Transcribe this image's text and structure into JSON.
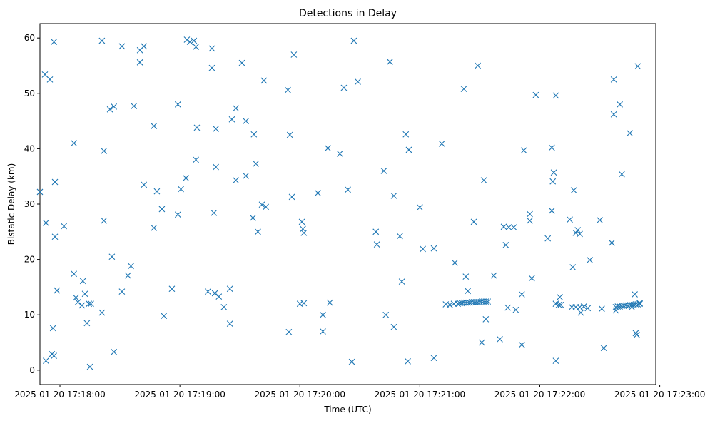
{
  "chart_data": {
    "type": "scatter",
    "title": "Detections in Delay",
    "xlabel": "Time (UTC)",
    "ylabel": "Bistatic Delay (km)",
    "x_unit": "time",
    "xlim": [
      "2025-01-20 17:17:50",
      "2025-01-20 17:22:58"
    ],
    "ylim": [
      -2.6,
      62.6
    ],
    "x_ticks": [
      "2025-01-20 17:18:00",
      "2025-01-20 17:19:00",
      "2025-01-20 17:20:00",
      "2025-01-20 17:21:00",
      "2025-01-20 17:22:00",
      "2025-01-20 17:23:00"
    ],
    "y_ticks": [
      0,
      10,
      20,
      30,
      40,
      50,
      60
    ],
    "grid": false,
    "legend": "none",
    "marker": "x",
    "color": "#1f77b4",
    "series": [
      {
        "points": [
          [
            "17:17:50.0",
            32.2
          ],
          [
            "17:17:52.5",
            53.4
          ],
          [
            "17:17:53.0",
            26.6
          ],
          [
            "17:17:53.0",
            1.7
          ],
          [
            "17:17:55.0",
            52.5
          ],
          [
            "17:17:56.0",
            2.9
          ],
          [
            "17:17:56.5",
            7.6
          ],
          [
            "17:17:57.0",
            2.6
          ],
          [
            "17:17:57.0",
            59.3
          ],
          [
            "17:17:57.5",
            24.1
          ],
          [
            "17:17:57.5",
            34.0
          ],
          [
            "17:17:58.5",
            14.4
          ],
          [
            "17:18:02.0",
            26.0
          ],
          [
            "17:18:07.0",
            41.0
          ],
          [
            "17:18:07.0",
            17.4
          ],
          [
            "17:18:08.0",
            13.1
          ],
          [
            "17:18:09.0",
            12.3
          ],
          [
            "17:18:11.0",
            11.7
          ],
          [
            "17:18:11.5",
            16.1
          ],
          [
            "17:18:12.5",
            13.8
          ],
          [
            "17:18:13.5",
            8.5
          ],
          [
            "17:18:14.5",
            12.0
          ],
          [
            "17:18:15.0",
            0.6
          ],
          [
            "17:18:15.5",
            12.0
          ],
          [
            "17:18:21.0",
            59.5
          ],
          [
            "17:18:21.0",
            10.4
          ],
          [
            "17:18:22.0",
            39.6
          ],
          [
            "17:18:22.0",
            27.0
          ],
          [
            "17:18:25.0",
            47.1
          ],
          [
            "17:18:26.0",
            20.5
          ],
          [
            "17:18:27.0",
            47.6
          ],
          [
            "17:18:27.0",
            3.3
          ],
          [
            "17:18:31.0",
            58.5
          ],
          [
            "17:18:31.0",
            14.2
          ],
          [
            "17:18:34.0",
            17.1
          ],
          [
            "17:18:35.5",
            18.8
          ],
          [
            "17:18:37.0",
            47.7
          ],
          [
            "17:18:40.0",
            57.8
          ],
          [
            "17:18:40.0",
            55.6
          ],
          [
            "17:18:42.0",
            58.5
          ],
          [
            "17:18:42.0",
            33.5
          ],
          [
            "17:18:47.0",
            44.1
          ],
          [
            "17:18:47.0",
            25.7
          ],
          [
            "17:18:48.5",
            32.3
          ],
          [
            "17:18:51.0",
            29.1
          ],
          [
            "17:18:52.0",
            9.8
          ],
          [
            "17:18:56.0",
            14.7
          ],
          [
            "17:18:59.0",
            28.1
          ],
          [
            "17:18:59.0",
            48.0
          ],
          [
            "17:19:00.5",
            32.7
          ],
          [
            "17:19:03.0",
            34.7
          ],
          [
            "17:19:03.5",
            59.7
          ],
          [
            "17:19:05.0",
            59.3
          ],
          [
            "17:19:07.0",
            59.5
          ],
          [
            "17:19:08.0",
            58.4
          ],
          [
            "17:19:08.0",
            38.0
          ],
          [
            "17:19:08.5",
            43.8
          ],
          [
            "17:19:14.0",
            14.2
          ],
          [
            "17:19:16.0",
            54.6
          ],
          [
            "17:19:16.0",
            58.1
          ],
          [
            "17:19:17.0",
            28.4
          ],
          [
            "17:19:17.5",
            13.9
          ],
          [
            "17:19:18.0",
            36.7
          ],
          [
            "17:19:18.0",
            43.6
          ],
          [
            "17:19:19.5",
            13.3
          ],
          [
            "17:19:22.0",
            11.4
          ],
          [
            "17:19:25.0",
            8.4
          ],
          [
            "17:19:25.0",
            14.7
          ],
          [
            "17:19:26.0",
            45.3
          ],
          [
            "17:19:28.0",
            47.3
          ],
          [
            "17:19:28.0",
            34.3
          ],
          [
            "17:19:31.0",
            55.5
          ],
          [
            "17:19:33.0",
            45.0
          ],
          [
            "17:19:33.0",
            35.1
          ],
          [
            "17:19:36.5",
            27.5
          ],
          [
            "17:19:37.0",
            42.6
          ],
          [
            "17:19:38.0",
            37.3
          ],
          [
            "17:19:39.0",
            25.0
          ],
          [
            "17:19:41.0",
            29.9
          ],
          [
            "17:19:42.0",
            52.3
          ],
          [
            "17:19:43.0",
            29.5
          ],
          [
            "17:19:54.0",
            50.6
          ],
          [
            "17:19:54.5",
            6.9
          ],
          [
            "17:19:55.0",
            42.5
          ],
          [
            "17:19:56.0",
            31.3
          ],
          [
            "17:19:57.0",
            57.0
          ],
          [
            "17:20:00.0",
            12.0
          ],
          [
            "17:20:01.0",
            26.8
          ],
          [
            "17:20:01.5",
            25.5
          ],
          [
            "17:20:02.0",
            24.8
          ],
          [
            "17:20:02.0",
            12.1
          ],
          [
            "17:20:09.0",
            32.0
          ],
          [
            "17:20:11.5",
            7.0
          ],
          [
            "17:20:11.5",
            10.0
          ],
          [
            "17:20:14.0",
            40.1
          ],
          [
            "17:20:15.0",
            12.2
          ],
          [
            "17:20:20.0",
            39.1
          ],
          [
            "17:20:22.0",
            51.0
          ],
          [
            "17:20:24.0",
            32.6
          ],
          [
            "17:20:26.0",
            1.5
          ],
          [
            "17:20:27.0",
            59.5
          ],
          [
            "17:20:29.0",
            52.1
          ],
          [
            "17:20:38.0",
            25.0
          ],
          [
            "17:20:38.5",
            22.7
          ],
          [
            "17:20:42.0",
            36.0
          ],
          [
            "17:20:43.0",
            10.0
          ],
          [
            "17:20:45.0",
            55.7
          ],
          [
            "17:20:47.0",
            31.5
          ],
          [
            "17:20:47.0",
            7.8
          ],
          [
            "17:20:50.0",
            24.2
          ],
          [
            "17:20:51.0",
            16.0
          ],
          [
            "17:20:53.0",
            42.6
          ],
          [
            "17:20:54.0",
            1.6
          ],
          [
            "17:20:54.5",
            39.8
          ],
          [
            "17:21:00.0",
            29.4
          ],
          [
            "17:21:01.5",
            21.9
          ],
          [
            "17:21:07.0",
            22.0
          ],
          [
            "17:21:07.0",
            2.2
          ],
          [
            "17:21:11.0",
            40.9
          ],
          [
            "17:21:13.0",
            11.9
          ],
          [
            "17:21:15.0",
            11.8
          ],
          [
            "17:21:17.0",
            12.0
          ],
          [
            "17:21:17.5",
            19.4
          ],
          [
            "17:21:19.0",
            12.0
          ],
          [
            "17:21:20.0",
            12.1
          ],
          [
            "17:21:21.0",
            12.1
          ],
          [
            "17:21:22.0",
            50.8
          ],
          [
            "17:21:22.0",
            12.2
          ],
          [
            "17:21:23.0",
            12.2
          ],
          [
            "17:21:23.0",
            16.9
          ],
          [
            "17:21:24.0",
            12.2
          ],
          [
            "17:21:24.0",
            14.3
          ],
          [
            "17:21:25.0",
            12.2
          ],
          [
            "17:21:26.0",
            12.3
          ],
          [
            "17:21:27.0",
            12.3
          ],
          [
            "17:21:27.0",
            26.8
          ],
          [
            "17:21:28.0",
            12.3
          ],
          [
            "17:21:29.0",
            12.3
          ],
          [
            "17:21:29.0",
            55.0
          ],
          [
            "17:21:30.0",
            12.3
          ],
          [
            "17:21:31.0",
            5.0
          ],
          [
            "17:21:31.0",
            12.4
          ],
          [
            "17:21:32.0",
            12.4
          ],
          [
            "17:21:32.0",
            34.3
          ],
          [
            "17:21:33.0",
            12.4
          ],
          [
            "17:21:33.0",
            9.2
          ],
          [
            "17:21:34.0",
            12.4
          ],
          [
            "17:21:37.0",
            17.1
          ],
          [
            "17:21:40.0",
            5.6
          ],
          [
            "17:21:42.0",
            25.9
          ],
          [
            "17:21:43.0",
            22.6
          ],
          [
            "17:21:44.0",
            11.3
          ],
          [
            "17:21:44.5",
            25.8
          ],
          [
            "17:21:47.0",
            25.8
          ],
          [
            "17:21:48.0",
            10.9
          ],
          [
            "17:21:51.0",
            4.6
          ],
          [
            "17:21:51.0",
            13.7
          ],
          [
            "17:21:52.0",
            39.7
          ],
          [
            "17:21:55.0",
            28.2
          ],
          [
            "17:21:55.0",
            27.0
          ],
          [
            "17:21:56.0",
            16.6
          ],
          [
            "17:21:58.0",
            49.7
          ],
          [
            "17:22:04.0",
            23.8
          ],
          [
            "17:22:06.0",
            28.8
          ],
          [
            "17:22:06.0",
            40.2
          ],
          [
            "17:22:06.5",
            34.1
          ],
          [
            "17:22:07.0",
            35.7
          ],
          [
            "17:22:08.0",
            49.6
          ],
          [
            "17:22:08.0",
            12.0
          ],
          [
            "17:22:08.0",
            1.7
          ],
          [
            "17:22:09.5",
            11.8
          ],
          [
            "17:22:10.0",
            13.2
          ],
          [
            "17:22:10.5",
            11.8
          ],
          [
            "17:22:15.0",
            27.2
          ],
          [
            "17:22:16.0",
            11.4
          ],
          [
            "17:22:16.5",
            18.6
          ],
          [
            "17:22:17.0",
            32.5
          ],
          [
            "17:22:18.0",
            24.8
          ],
          [
            "17:22:18.0",
            11.4
          ],
          [
            "17:22:19.0",
            25.3
          ],
          [
            "17:22:20.0",
            24.6
          ],
          [
            "17:22:20.0",
            11.4
          ],
          [
            "17:22:20.5",
            10.4
          ],
          [
            "17:22:22.0",
            11.5
          ],
          [
            "17:22:24.0",
            11.2
          ],
          [
            "17:22:25.0",
            19.9
          ],
          [
            "17:22:30.0",
            27.1
          ],
          [
            "17:22:31.0",
            11.1
          ],
          [
            "17:22:32.0",
            4.0
          ],
          [
            "17:22:36.0",
            23.0
          ],
          [
            "17:22:37.0",
            52.5
          ],
          [
            "17:22:37.0",
            46.2
          ],
          [
            "17:22:38.0",
            10.8
          ],
          [
            "17:22:38.0",
            11.4
          ],
          [
            "17:22:39.0",
            11.5
          ],
          [
            "17:22:40.0",
            11.5
          ],
          [
            "17:22:40.0",
            48.0
          ],
          [
            "17:22:41.0",
            35.4
          ],
          [
            "17:22:41.0",
            11.6
          ],
          [
            "17:22:42.0",
            11.6
          ],
          [
            "17:22:43.0",
            11.7
          ],
          [
            "17:22:44.0",
            11.7
          ],
          [
            "17:22:45.0",
            11.8
          ],
          [
            "17:22:45.0",
            42.8
          ],
          [
            "17:22:46.0",
            11.8
          ],
          [
            "17:22:46.0",
            11.4
          ],
          [
            "17:22:47.0",
            11.8
          ],
          [
            "17:22:47.5",
            13.7
          ],
          [
            "17:22:48.0",
            11.9
          ],
          [
            "17:22:48.0",
            6.7
          ],
          [
            "17:22:48.5",
            6.4
          ],
          [
            "17:22:49.0",
            11.9
          ],
          [
            "17:22:49.0",
            54.9
          ],
          [
            "17:22:50.0",
            12.0
          ],
          [
            "17:22:50.0",
            12.1
          ]
        ]
      }
    ]
  }
}
